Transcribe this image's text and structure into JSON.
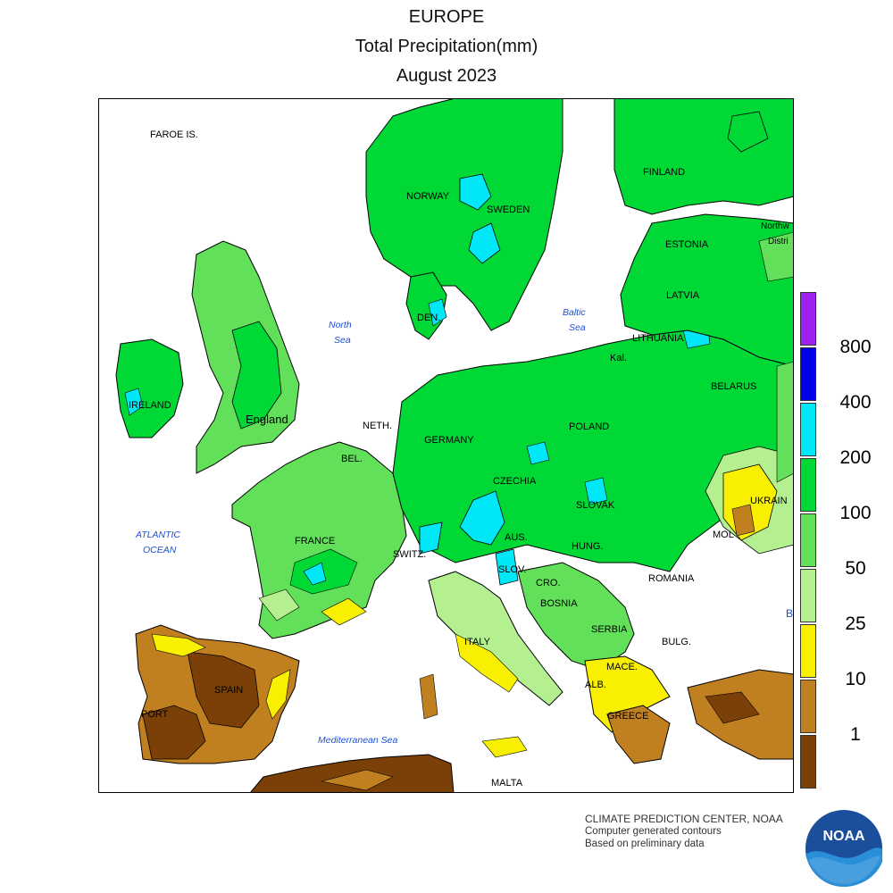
{
  "header": {
    "region": "EUROPE",
    "variable": "Total Precipitation(mm)",
    "period": "August 2023"
  },
  "legend": {
    "items": [
      {
        "label": "800",
        "color": "#A020F0"
      },
      {
        "label": "400",
        "color": "#0000E8"
      },
      {
        "label": "200",
        "color": "#00E8F8"
      },
      {
        "label": "100",
        "color": "#00D836"
      },
      {
        "label": "50",
        "color": "#62E05A"
      },
      {
        "label": "25",
        "color": "#B4F090"
      },
      {
        "label": "10",
        "color": "#F8F000"
      },
      {
        "label": "1",
        "color": "#C08020"
      },
      {
        "label": "",
        "color": "#7A4008"
      }
    ]
  },
  "map_labels": {
    "faroe": "FAROE IS.",
    "norway": "NORWAY",
    "sweden": "SWEDEN",
    "finland": "FINLAND",
    "estonia": "ESTONIA",
    "northw": "Northw",
    "distri": "Distri",
    "latvia": "LATVIA",
    "lithuania": "LITHUANIA",
    "kal": "Kal.",
    "belarus": "BELARUS",
    "den": "DEN.",
    "north_sea": "North Sea",
    "baltic_sea": "Baltic Sea",
    "ireland": "IRELAND",
    "england": "England",
    "neth": "NETH.",
    "bel": "BEL.",
    "germany": "GERMANY",
    "poland": "POLAND",
    "czechia": "CZECHIA",
    "slovak": "SLOVAK",
    "ukraine": "UKRAIN",
    "mol": "MOL",
    "france": "FRANCE",
    "switz": "SWITZ.",
    "aus": "AUS.",
    "slov": "SLOV.",
    "hung": "HUNG.",
    "romania": "ROMANIA",
    "cro": "CRO.",
    "bosnia": "BOSNIA",
    "serbia": "SERBIA",
    "bulg": "BULG.",
    "mace": "MACE.",
    "alb": "ALB.",
    "greece": "GREECE",
    "italy": "ITALY",
    "spain": "SPAIN",
    "port": "PORT",
    "malta": "MALTA",
    "atlantic": "ATLANTIC OCEAN",
    "med_sea": "Mediterranean Sea",
    "b": "B"
  },
  "credits": {
    "line1": "CLIMATE PREDICTION CENTER, NOAA",
    "line2": "Computer generated contours",
    "line3": "Based on preliminary data"
  },
  "logo": {
    "text": "NOAA"
  }
}
